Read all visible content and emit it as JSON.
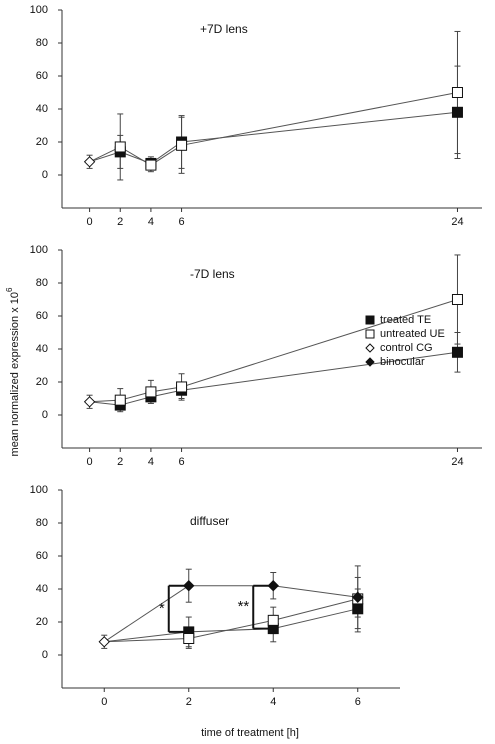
{
  "shared": {
    "y_label": "mean normalized expression x 10",
    "y_label_superscript": "6",
    "x_label": "time of treatment [h]"
  },
  "chart_data": [
    {
      "type": "line",
      "title": "+7D lens",
      "xlim": [
        -1.8,
        25.6
      ],
      "xticks": [
        0,
        2,
        4,
        6,
        24
      ],
      "ylim": [
        -20,
        100
      ],
      "yticks": [
        0,
        20,
        40,
        60,
        80,
        100
      ],
      "series": [
        {
          "name": "treated TE",
          "color": "#222222",
          "marker": "square-filled",
          "x": [
            2,
            4,
            6,
            24
          ],
          "values": [
            14,
            7,
            20,
            38
          ],
          "errors": [
            10,
            4,
            16,
            28
          ]
        },
        {
          "name": "untreated UE",
          "color": "#ffffff",
          "marker": "square-open",
          "x": [
            2,
            4,
            6,
            24
          ],
          "values": [
            17,
            6,
            18,
            50
          ],
          "errors": [
            20,
            4,
            17,
            37
          ]
        },
        {
          "name": "control CG",
          "color": "#ffffff",
          "marker": "diamond-open",
          "x": [
            0
          ],
          "values": [
            8
          ],
          "errors": [
            4
          ]
        }
      ]
    },
    {
      "type": "line",
      "title": "-7D lens",
      "xlim": [
        -1.8,
        25.6
      ],
      "xticks": [
        0,
        2,
        4,
        6,
        24
      ],
      "ylim": [
        -20,
        100
      ],
      "yticks": [
        0,
        20,
        40,
        60,
        80,
        100
      ],
      "series": [
        {
          "name": "treated TE",
          "color": "#222222",
          "marker": "square-filled",
          "x": [
            2,
            4,
            6,
            24
          ],
          "values": [
            6,
            11,
            15,
            38
          ],
          "errors": [
            3,
            3,
            5,
            12
          ]
        },
        {
          "name": "untreated UE",
          "color": "#ffffff",
          "marker": "square-open",
          "x": [
            2,
            4,
            6,
            24
          ],
          "values": [
            9,
            14,
            17,
            70
          ],
          "errors": [
            7,
            7,
            8,
            27
          ]
        },
        {
          "name": "control CG",
          "color": "#ffffff",
          "marker": "diamond-open",
          "x": [
            0
          ],
          "values": [
            8
          ],
          "errors": [
            4
          ]
        }
      ]
    },
    {
      "type": "line",
      "title": "diffuser",
      "xlim": [
        -1,
        7
      ],
      "xticks": [
        0,
        2,
        4,
        6
      ],
      "ylim": [
        -20,
        100
      ],
      "yticks": [
        0,
        20,
        40,
        60,
        80,
        100
      ],
      "series": [
        {
          "name": "treated TE",
          "color": "#222222",
          "marker": "square-filled",
          "x": [
            2,
            4,
            6
          ],
          "values": [
            14,
            16,
            28
          ],
          "errors": [
            9,
            8,
            12
          ]
        },
        {
          "name": "untreated UE",
          "color": "#ffffff",
          "marker": "square-open",
          "x": [
            2,
            4,
            6
          ],
          "values": [
            10,
            21,
            34
          ],
          "errors": [
            6,
            8,
            20
          ]
        },
        {
          "name": "control CG",
          "color": "#ffffff",
          "marker": "diamond-open",
          "x": [
            0
          ],
          "values": [
            8
          ],
          "errors": [
            4
          ]
        },
        {
          "name": "binocular",
          "color": "#000000",
          "marker": "diamond-filled",
          "x": [
            2,
            4,
            6
          ],
          "values": [
            42,
            42,
            35
          ],
          "errors": [
            10,
            8,
            12
          ]
        }
      ],
      "annotations": [
        "*",
        "**"
      ]
    }
  ]
}
